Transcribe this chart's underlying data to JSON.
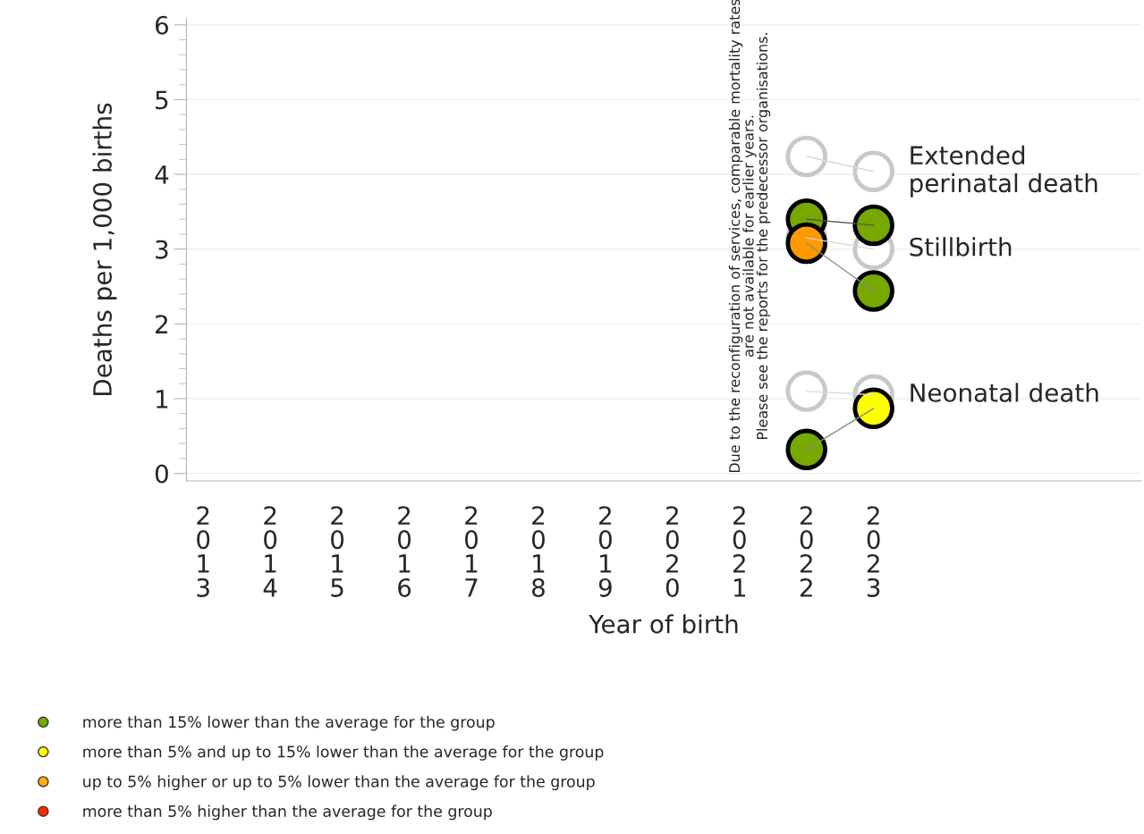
{
  "chart_data": {
    "type": "line",
    "xlabel": "Year of birth",
    "ylabel": "Deaths per 1,000 births",
    "categories": [
      "2013",
      "2014",
      "2015",
      "2016",
      "2017",
      "2018",
      "2019",
      "2020",
      "2021",
      "2022",
      "2023"
    ],
    "ylim": [
      -0.1,
      6.08
    ],
    "yticks": [
      0,
      1,
      2,
      3,
      4,
      5,
      6
    ],
    "grid": "y",
    "marker": "circle",
    "legend": "bottom left",
    "series": [
      {
        "name": "Extended\nperinatal death",
        "color": "#d9d9d9",
        "colors": [
          null,
          null,
          null,
          null,
          null,
          null,
          null,
          null,
          null,
          "#ffffff",
          "#ffffff"
        ],
        "values": [
          null,
          null,
          null,
          null,
          null,
          null,
          null,
          null,
          null,
          4.24,
          4.04
        ]
      },
      {
        "name": "Stillbirth",
        "color": "#d9d9d9",
        "colors": [
          null,
          null,
          null,
          null,
          null,
          null,
          null,
          null,
          null,
          "#ffffff",
          "#ffffff"
        ],
        "values": [
          null,
          null,
          null,
          null,
          null,
          null,
          null,
          null,
          null,
          3.15,
          3.0
        ]
      },
      {
        "name": "Neonatal death",
        "color": "#d9d9d9",
        "colors": [
          null,
          null,
          null,
          null,
          null,
          null,
          null,
          null,
          null,
          "#ffffff",
          "#ffffff"
        ],
        "values": [
          null,
          null,
          null,
          null,
          null,
          null,
          null,
          null,
          null,
          1.1,
          1.05
        ]
      },
      {
        "color": "#555555",
        "colors": [
          null,
          null,
          null,
          null,
          null,
          null,
          null,
          null,
          null,
          "#76a800",
          "#76a800"
        ],
        "values": [
          null,
          null,
          null,
          null,
          null,
          null,
          null,
          null,
          null,
          3.4,
          3.32
        ]
      },
      {
        "color": "#8c8c8c",
        "colors": [
          null,
          null,
          null,
          null,
          null,
          null,
          null,
          null,
          null,
          "#ff9900",
          "#76a800"
        ],
        "values": [
          null,
          null,
          null,
          null,
          null,
          null,
          null,
          null,
          null,
          3.08,
          2.44
        ]
      },
      {
        "color": "#8c8c8c",
        "colors": [
          null,
          null,
          null,
          null,
          null,
          null,
          null,
          null,
          null,
          "#76a800",
          "#ffff00"
        ],
        "values": [
          null,
          null,
          null,
          null,
          null,
          null,
          null,
          null,
          null,
          0.32,
          0.87
        ]
      },
      {
        "type": "scatter",
        "name": "more than 15% lower than the average for the group",
        "color": "#76a800",
        "values": [
          null,
          null,
          null,
          null,
          null,
          null,
          null,
          null,
          null,
          null,
          null
        ]
      },
      {
        "type": "scatter",
        "name": "more than 5% and up to 15% lower than the average for the group",
        "color": "#ffff00",
        "values": [
          null,
          null,
          null,
          null,
          null,
          null,
          null,
          null,
          null,
          null,
          null
        ]
      },
      {
        "type": "scatter",
        "name": "up to 5% higher or up to 5% lower than the average for the group",
        "color": "#ffb000",
        "values": [
          null,
          null,
          null,
          null,
          null,
          null,
          null,
          null,
          null,
          null,
          null
        ]
      },
      {
        "type": "scatter",
        "name": "more than 5% higher than the average for the group",
        "color": "#ff2a00",
        "values": [
          null,
          null,
          null,
          null,
          null,
          null,
          null,
          null,
          null,
          null,
          null
        ]
      }
    ],
    "annotations": [
      "Due to the reconfiguration of services, comparable mortality rates\nare not available for earlier years.\nPlease see the reports for the predecessor organisations."
    ]
  }
}
